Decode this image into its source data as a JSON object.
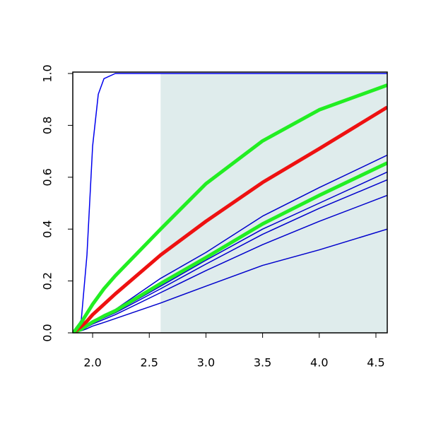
{
  "chart_data": {
    "type": "line",
    "x": [
      1.83,
      1.9,
      1.95,
      2.0,
      2.05,
      2.1,
      2.2,
      2.6,
      3.0,
      3.5,
      4.0,
      4.6
    ],
    "xlim": [
      1.825,
      4.6
    ],
    "ylim": [
      0,
      1
    ],
    "xticks": [
      {
        "value": 2,
        "label": "2.0"
      },
      2.5,
      {
        "value": 3,
        "label": "3.0"
      },
      3.5,
      {
        "value": 4,
        "label": "4.0"
      },
      4.5
    ],
    "yticks": [
      {
        "value": 0,
        "label": "0.0"
      },
      0.2,
      0.4,
      0.6,
      0.8,
      {
        "value": 1,
        "label": "1.0"
      }
    ],
    "shaded_region": {
      "x": [
        2.6,
        4.6
      ],
      "y": [
        0,
        1
      ],
      "color": "#dfecec"
    },
    "series": [
      {
        "color": "#0000ee",
        "width": 1.5,
        "values": [
          0,
          0.05,
          0.3,
          0.72,
          0.92,
          0.98,
          1.0,
          1.0,
          1.0,
          1.0,
          1.0,
          1.0
        ]
      },
      {
        "color": "#0000cc",
        "width": 1.5,
        "values": [
          0,
          0.015,
          0.03,
          0.045,
          0.055,
          0.07,
          0.09,
          0.21,
          0.31,
          0.45,
          0.56,
          0.685
        ]
      },
      {
        "color": "#0000cc",
        "width": 1.5,
        "values": [
          0,
          0.013,
          0.026,
          0.04,
          0.05,
          0.062,
          0.08,
          0.18,
          0.28,
          0.4,
          0.5,
          0.62
        ]
      },
      {
        "color": "#0000cc",
        "width": 1.5,
        "values": [
          0,
          0.012,
          0.025,
          0.038,
          0.048,
          0.058,
          0.077,
          0.17,
          0.265,
          0.38,
          0.48,
          0.59
        ]
      },
      {
        "color": "#0000cc",
        "width": 1.5,
        "values": [
          0,
          0.011,
          0.022,
          0.034,
          0.043,
          0.052,
          0.07,
          0.155,
          0.24,
          0.34,
          0.43,
          0.53
        ]
      },
      {
        "color": "#0000cc",
        "width": 1.5,
        "values": [
          0,
          0.008,
          0.016,
          0.026,
          0.033,
          0.04,
          0.055,
          0.115,
          0.18,
          0.26,
          0.32,
          0.4
        ]
      },
      {
        "color": "#22ee22",
        "width": 5,
        "values": [
          0,
          0.014,
          0.028,
          0.042,
          0.053,
          0.065,
          0.085,
          0.19,
          0.29,
          0.42,
          0.53,
          0.655
        ]
      },
      {
        "color": "#ee1111",
        "width": 5,
        "values": [
          0,
          0.025,
          0.045,
          0.07,
          0.09,
          0.11,
          0.15,
          0.3,
          0.43,
          0.58,
          0.71,
          0.87
        ]
      },
      {
        "color": "#22ee22",
        "width": 5,
        "values": [
          0,
          0.04,
          0.075,
          0.11,
          0.14,
          0.17,
          0.22,
          0.4,
          0.575,
          0.74,
          0.86,
          0.955
        ]
      }
    ]
  }
}
